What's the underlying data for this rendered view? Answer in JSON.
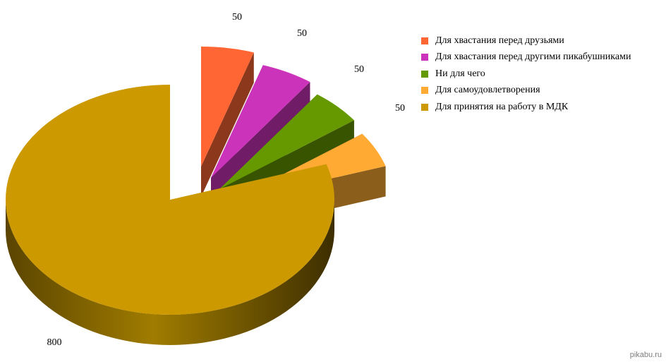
{
  "chart_data": {
    "type": "pie",
    "three_d": true,
    "exploded": true,
    "legend_position": "right",
    "slices": [
      {
        "label": "Для хвастания перед друзьями",
        "value": 50,
        "color": "#ff6633"
      },
      {
        "label": "Для хвастания перед другими пикабушниками",
        "value": 50,
        "color": "#cc33bb"
      },
      {
        "label": "Ни для чего",
        "value": 50,
        "color": "#669900"
      },
      {
        "label": "Для самоудовлетворения",
        "value": 50,
        "color": "#ffaa33"
      },
      {
        "label": "Для принятия на работу в МДК",
        "value": 800,
        "color": "#cc9900"
      }
    ]
  },
  "watermark": "pikabu.ru"
}
